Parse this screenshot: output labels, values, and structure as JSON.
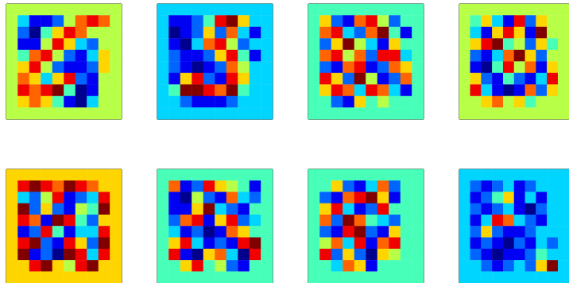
{
  "chart_data": [
    {
      "type": "heatmap",
      "tick_labels": false,
      "cells": [
        [
          5,
          5,
          5,
          5,
          5,
          5,
          5,
          5,
          5,
          5
        ],
        [
          5,
          3,
          1,
          1,
          2,
          5,
          7,
          8,
          7,
          5
        ],
        [
          5,
          2,
          0,
          4,
          6,
          8,
          7,
          5,
          5,
          5
        ],
        [
          5,
          1,
          1,
          5,
          8,
          6,
          3,
          2,
          5,
          5
        ],
        [
          5,
          4,
          7,
          8,
          5,
          2,
          1,
          3,
          6,
          5
        ],
        [
          5,
          6,
          8,
          5,
          2,
          1,
          1,
          2,
          6,
          5
        ],
        [
          5,
          7,
          6,
          3,
          6,
          8,
          2,
          1,
          5,
          5
        ],
        [
          5,
          8,
          7,
          8,
          9,
          4,
          0,
          1,
          5,
          5
        ],
        [
          5,
          6,
          7,
          6,
          4,
          1,
          0,
          3,
          5,
          5
        ],
        [
          5,
          5,
          5,
          5,
          5,
          5,
          5,
          5,
          5,
          5
        ]
      ]
    },
    {
      "type": "heatmap",
      "tick_labels": false,
      "cells": [
        [
          3,
          3,
          3,
          3,
          3,
          3,
          3,
          3,
          3,
          3
        ],
        [
          3,
          1,
          1,
          2,
          4,
          8,
          9,
          6,
          3,
          3
        ],
        [
          3,
          0,
          1,
          2,
          6,
          2,
          7,
          3,
          1,
          3
        ],
        [
          3,
          1,
          0,
          3,
          7,
          8,
          5,
          2,
          3,
          3
        ],
        [
          3,
          2,
          1,
          1,
          2,
          6,
          8,
          4,
          1,
          3
        ],
        [
          3,
          2,
          1,
          0,
          1,
          2,
          7,
          5,
          3,
          3
        ],
        [
          3,
          1,
          6,
          8,
          2,
          1,
          8,
          6,
          3,
          3
        ],
        [
          3,
          4,
          9,
          9,
          8,
          7,
          9,
          4,
          3,
          3
        ],
        [
          3,
          3,
          2,
          1,
          1,
          1,
          2,
          3,
          3,
          3
        ],
        [
          3,
          3,
          3,
          3,
          3,
          3,
          3,
          3,
          3,
          3
        ]
      ]
    },
    {
      "type": "heatmap",
      "tick_labels": false,
      "cells": [
        [
          4,
          4,
          4,
          4,
          4,
          4,
          4,
          4,
          4,
          4
        ],
        [
          4,
          6,
          2,
          1,
          7,
          8,
          5,
          2,
          4,
          4
        ],
        [
          4,
          7,
          8,
          3,
          2,
          7,
          9,
          4,
          1,
          4
        ],
        [
          4,
          2,
          6,
          9,
          5,
          3,
          1,
          6,
          4,
          4
        ],
        [
          4,
          7,
          8,
          5,
          7,
          2,
          8,
          8,
          3,
          4
        ],
        [
          4,
          2,
          1,
          7,
          8,
          1,
          2,
          7,
          6,
          4
        ],
        [
          4,
          8,
          6,
          2,
          9,
          5,
          1,
          2,
          7,
          4
        ],
        [
          4,
          6,
          8,
          7,
          3,
          8,
          7,
          3,
          1,
          4
        ],
        [
          4,
          4,
          2,
          1,
          6,
          4,
          5,
          4,
          4,
          4
        ],
        [
          4,
          4,
          4,
          4,
          4,
          4,
          4,
          4,
          4,
          4
        ]
      ]
    },
    {
      "type": "heatmap",
      "tick_labels": false,
      "cells": [
        [
          5,
          5,
          5,
          5,
          5,
          5,
          5,
          5,
          5,
          5
        ],
        [
          5,
          4,
          6,
          3,
          1,
          8,
          2,
          6,
          5,
          5
        ],
        [
          5,
          3,
          1,
          6,
          8,
          6,
          1,
          9,
          5,
          5
        ],
        [
          5,
          6,
          8,
          9,
          4,
          5,
          2,
          6,
          4,
          5
        ],
        [
          5,
          2,
          1,
          3,
          7,
          9,
          6,
          2,
          5,
          5
        ],
        [
          5,
          1,
          0,
          4,
          8,
          5,
          7,
          1,
          6,
          5
        ],
        [
          5,
          6,
          2,
          1,
          4,
          2,
          1,
          3,
          8,
          5
        ],
        [
          5,
          8,
          3,
          1,
          0,
          1,
          7,
          2,
          6,
          5
        ],
        [
          5,
          5,
          6,
          7,
          5,
          6,
          4,
          5,
          5,
          5
        ],
        [
          5,
          5,
          5,
          5,
          5,
          5,
          5,
          5,
          5,
          5
        ]
      ]
    },
    {
      "type": "heatmap",
      "tick_labels": false,
      "cells": [
        [
          6,
          6,
          6,
          6,
          6,
          6,
          6,
          6,
          6,
          6
        ],
        [
          6,
          8,
          9,
          8,
          7,
          9,
          8,
          7,
          6,
          6
        ],
        [
          6,
          3,
          2,
          5,
          8,
          1,
          2,
          3,
          8,
          6
        ],
        [
          6,
          9,
          2,
          6,
          2,
          1,
          5,
          4,
          9,
          6
        ],
        [
          6,
          8,
          7,
          1,
          9,
          8,
          4,
          2,
          6,
          6
        ],
        [
          6,
          1,
          2,
          8,
          4,
          1,
          3,
          3,
          8,
          6
        ],
        [
          6,
          8,
          9,
          2,
          1,
          8,
          6,
          2,
          9,
          6
        ],
        [
          6,
          9,
          1,
          2,
          0,
          9,
          8,
          3,
          8,
          6
        ],
        [
          6,
          6,
          8,
          9,
          6,
          5,
          8,
          9,
          6,
          6
        ],
        [
          6,
          6,
          6,
          6,
          6,
          6,
          6,
          6,
          6,
          6
        ]
      ]
    },
    {
      "type": "heatmap",
      "tick_labels": false,
      "cells": [
        [
          4,
          4,
          4,
          4,
          4,
          4,
          4,
          4,
          4,
          4
        ],
        [
          4,
          7,
          1,
          2,
          8,
          6,
          5,
          4,
          1,
          4
        ],
        [
          4,
          1,
          0,
          5,
          2,
          1,
          7,
          3,
          2,
          4
        ],
        [
          4,
          1,
          1,
          6,
          9,
          3,
          2,
          1,
          4,
          4
        ],
        [
          4,
          2,
          7,
          8,
          1,
          6,
          8,
          2,
          3,
          4
        ],
        [
          4,
          3,
          1,
          2,
          0,
          1,
          7,
          6,
          4,
          4
        ],
        [
          4,
          6,
          8,
          3,
          1,
          2,
          1,
          8,
          9,
          4
        ],
        [
          4,
          8,
          1,
          0,
          6,
          7,
          3,
          0,
          8,
          4
        ],
        [
          4,
          4,
          6,
          8,
          4,
          5,
          2,
          1,
          4,
          4
        ],
        [
          4,
          4,
          4,
          4,
          4,
          4,
          4,
          4,
          4,
          4
        ]
      ]
    },
    {
      "type": "heatmap",
      "tick_labels": false,
      "cells": [
        [
          4,
          4,
          4,
          4,
          4,
          4,
          4,
          4,
          4,
          4
        ],
        [
          4,
          4,
          6,
          2,
          1,
          3,
          7,
          2,
          4,
          4
        ],
        [
          4,
          2,
          1,
          7,
          8,
          9,
          6,
          1,
          4,
          4
        ],
        [
          4,
          6,
          8,
          3,
          1,
          2,
          8,
          4,
          4,
          4
        ],
        [
          4,
          7,
          2,
          9,
          7,
          4,
          3,
          2,
          4,
          4
        ],
        [
          4,
          2,
          1,
          8,
          9,
          2,
          1,
          6,
          4,
          4
        ],
        [
          4,
          5,
          7,
          3,
          8,
          1,
          7,
          8,
          4,
          4
        ],
        [
          4,
          8,
          2,
          6,
          2,
          0,
          6,
          5,
          4,
          4
        ],
        [
          4,
          4,
          3,
          7,
          6,
          1,
          4,
          4,
          4,
          4
        ],
        [
          4,
          4,
          4,
          4,
          4,
          4,
          4,
          4,
          4,
          4
        ]
      ]
    },
    {
      "type": "heatmap",
      "tick_labels": false,
      "cells": [
        [
          3,
          3,
          3,
          3,
          3,
          3,
          3,
          3,
          3,
          3
        ],
        [
          3,
          2,
          1,
          2,
          3,
          1,
          2,
          3,
          3,
          3
        ],
        [
          3,
          1,
          2,
          4,
          6,
          1,
          3,
          1,
          3,
          3
        ],
        [
          3,
          2,
          1,
          2,
          3,
          1,
          0,
          2,
          3,
          3
        ],
        [
          3,
          1,
          3,
          8,
          7,
          3,
          2,
          1,
          3,
          3
        ],
        [
          3,
          2,
          6,
          2,
          1,
          1,
          2,
          3,
          3,
          3
        ],
        [
          3,
          1,
          2,
          1,
          0,
          2,
          1,
          3,
          2,
          3
        ],
        [
          3,
          2,
          1,
          0,
          1,
          1,
          2,
          4,
          3,
          3
        ],
        [
          3,
          3,
          2,
          1,
          2,
          3,
          2,
          6,
          9,
          3
        ],
        [
          3,
          3,
          3,
          3,
          3,
          3,
          3,
          3,
          3,
          3
        ]
      ]
    }
  ]
}
